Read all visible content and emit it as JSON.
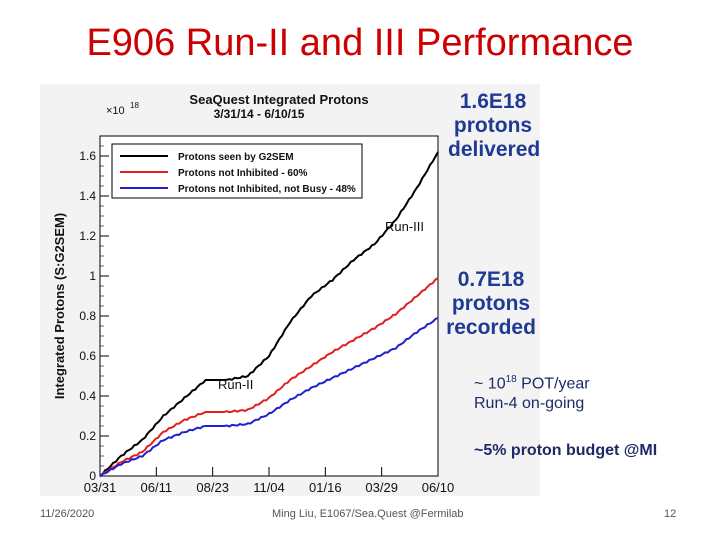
{
  "slide": {
    "title": "E906 Run-II and III Performance",
    "footer_date": "11/26/2020",
    "footer_author": "Ming Liu, E1067/Sea.Quest @Fermilab",
    "page_number": "12"
  },
  "annotations": {
    "delivered_value": "1.6E18",
    "delivered_word1": "protons",
    "delivered_word2": "delivered",
    "recorded_value": "0.7E18",
    "recorded_word1": "protons",
    "recorded_word2": "recorded",
    "pot_prefix": "~ 10",
    "pot_exp": "18",
    "pot_suffix": " POT/year",
    "run4": "Run-4 on-going",
    "budget": "~5% proton budget @MI",
    "run2_label": "Run-II",
    "run3_label": "Run-III"
  },
  "chart_data": {
    "type": "line",
    "title": "SeaQuest Integrated Protons",
    "subtitle": "3/31/14 - 6/10/15",
    "ylabel": "Integrated Protons (S:G2SEM)",
    "y_multiplier": "×10",
    "y_multiplier_exp": "18",
    "ylim": [
      0,
      1.7
    ],
    "yticks": [
      "0",
      "0.2",
      "0.4",
      "0.6",
      "0.8",
      "1",
      "1.2",
      "1.4",
      "1.6"
    ],
    "xticks": [
      "03/31",
      "06/11",
      "08/23",
      "11/04",
      "01/16",
      "03/29",
      "06/10"
    ],
    "legend_position": "top-left",
    "grid": false,
    "x": [
      "03/31",
      "04/30",
      "06/11",
      "07/11",
      "08/01",
      "08/23",
      "09/30",
      "10/20",
      "11/04",
      "12/01",
      "01/16",
      "02/15",
      "03/01",
      "03/29",
      "04/15",
      "05/10",
      "06/10"
    ],
    "series": [
      {
        "name": "Protons seen by G2SEM",
        "color": "#000000",
        "values": [
          0,
          0.1,
          0.18,
          0.3,
          0.39,
          0.48,
          0.48,
          0.5,
          0.6,
          0.77,
          0.9,
          0.98,
          1.08,
          1.16,
          1.28,
          1.44,
          1.62
        ]
      },
      {
        "name": "Protons not Inhibited - 60%",
        "color": "#e02020",
        "values": [
          0,
          0.07,
          0.12,
          0.22,
          0.28,
          0.32,
          0.32,
          0.33,
          0.39,
          0.48,
          0.55,
          0.62,
          0.68,
          0.74,
          0.81,
          0.9,
          0.99
        ]
      },
      {
        "name": "Protons not Inhibited, not Busy - 48%",
        "color": "#2020d0",
        "values": [
          0,
          0.06,
          0.1,
          0.18,
          0.22,
          0.25,
          0.25,
          0.26,
          0.31,
          0.38,
          0.44,
          0.49,
          0.54,
          0.59,
          0.64,
          0.72,
          0.79
        ]
      }
    ]
  }
}
